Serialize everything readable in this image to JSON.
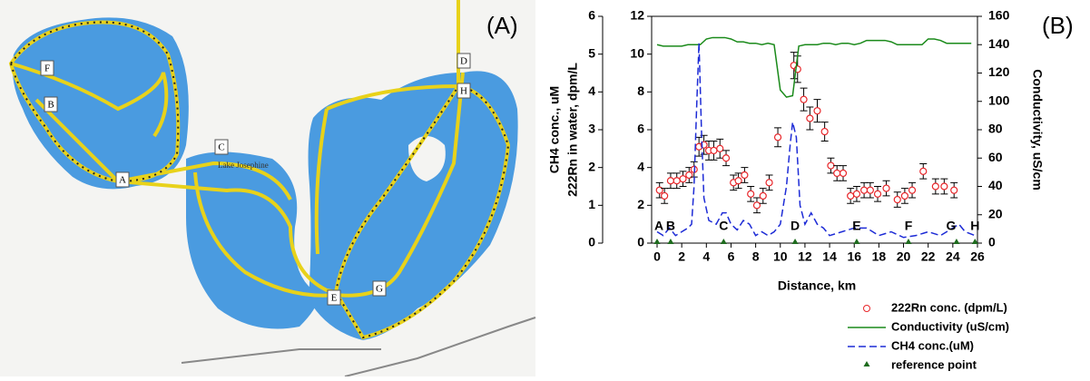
{
  "map": {
    "panel_label": "(A)",
    "lake_name": "Lake Josephine",
    "points": [
      {
        "label": "F"
      },
      {
        "label": "B"
      },
      {
        "label": "C"
      },
      {
        "label": "A"
      },
      {
        "label": "D"
      },
      {
        "label": "H"
      },
      {
        "label": "G"
      },
      {
        "label": "E"
      }
    ]
  },
  "chart_data": {
    "type": "multi-axis",
    "panel_label": "(B)",
    "x_label": "Distance, km",
    "y_label": "222Rn in water, dpm/L",
    "y2_label": "Conductivity, uS/cm",
    "y3_label": "CH4 conc., uM",
    "xlim": [
      0,
      26
    ],
    "xticks": [
      0,
      2,
      4,
      6,
      8,
      10,
      12,
      14,
      16,
      18,
      20,
      22,
      24,
      26
    ],
    "ylim": [
      0,
      12
    ],
    "yticks": [
      0,
      2,
      4,
      6,
      8,
      10,
      12
    ],
    "y2lim": [
      0,
      160
    ],
    "y2ticks": [
      0,
      20,
      40,
      60,
      80,
      100,
      120,
      140,
      160
    ],
    "y3lim": [
      0,
      6
    ],
    "y3ticks": [
      0,
      1,
      2,
      3,
      4,
      5,
      6
    ],
    "series": [
      {
        "name": "222Rn conc. (dpm/L)",
        "type": "scatter",
        "color": "#e8262a",
        "x": [
          0.2,
          0.6,
          1.1,
          1.6,
          2.1,
          2.6,
          3.0,
          3.4,
          3.8,
          4.2,
          4.6,
          5.1,
          5.6,
          6.2,
          6.6,
          7.1,
          7.6,
          8.1,
          8.6,
          9.1,
          9.8,
          11.1,
          11.4,
          11.9,
          12.4,
          13.0,
          13.6,
          14.1,
          14.6,
          15.1,
          15.7,
          16.2,
          16.8,
          17.3,
          17.9,
          18.6,
          19.5,
          20.1,
          20.7,
          21.6,
          22.6,
          23.3,
          24.1
        ],
        "values": [
          2.8,
          2.5,
          3.3,
          3.3,
          3.4,
          3.6,
          3.9,
          5.1,
          5.2,
          4.9,
          4.9,
          5.0,
          4.5,
          3.2,
          3.3,
          3.6,
          2.6,
          2.0,
          2.5,
          3.2,
          5.6,
          9.4,
          9.2,
          7.6,
          6.6,
          7.0,
          5.9,
          4.1,
          3.7,
          3.7,
          2.5,
          2.6,
          2.8,
          2.8,
          2.6,
          2.9,
          2.3,
          2.5,
          2.8,
          3.8,
          3.0,
          3.0,
          2.8
        ],
        "errors": [
          0.4,
          0.4,
          0.4,
          0.4,
          0.4,
          0.4,
          0.4,
          0.5,
          0.5,
          0.5,
          0.5,
          0.5,
          0.4,
          0.4,
          0.4,
          0.4,
          0.4,
          0.4,
          0.4,
          0.4,
          0.5,
          0.7,
          0.7,
          0.6,
          0.6,
          0.6,
          0.5,
          0.4,
          0.4,
          0.4,
          0.4,
          0.4,
          0.4,
          0.4,
          0.4,
          0.4,
          0.4,
          0.4,
          0.4,
          0.4,
          0.4,
          0.4,
          0.4
        ]
      },
      {
        "name": "Conductivity (uS/cm)",
        "type": "line",
        "axis": "y2",
        "color": "#1a8a1a",
        "x": [
          0,
          0.5,
          1,
          1.5,
          2,
          2.5,
          3,
          3.5,
          4,
          4.5,
          5,
          5.5,
          6,
          6.5,
          7,
          7.5,
          8,
          8.5,
          9,
          9.5,
          10,
          10.5,
          11,
          11.5,
          12,
          12.5,
          13,
          13.5,
          14,
          14.5,
          15,
          15.5,
          16,
          16.5,
          17,
          17.5,
          18,
          18.5,
          19,
          19.5,
          20,
          20.5,
          21,
          21.5,
          22,
          22.5,
          23,
          23.5,
          24,
          24.5,
          25,
          25.5
        ],
        "values": [
          140,
          139,
          139,
          139,
          139,
          140,
          140,
          140,
          144,
          145,
          145,
          145,
          144,
          142,
          142,
          141,
          141,
          140,
          141,
          140,
          108,
          103,
          104,
          139,
          140,
          140,
          140,
          141,
          141,
          140,
          141,
          141,
          140,
          141,
          143,
          143,
          143,
          143,
          142,
          140,
          140,
          140,
          140,
          140,
          144,
          144,
          143,
          141,
          141,
          141,
          141,
          141
        ]
      },
      {
        "name": "CH4 conc.(uM)",
        "type": "line",
        "axis": "y3",
        "color": "#1d2bd6",
        "dashed": true,
        "x": [
          0,
          0.5,
          1,
          1.5,
          2,
          2.5,
          2.8,
          3.0,
          3.2,
          3.4,
          3.6,
          3.8,
          4.2,
          4.8,
          5.3,
          5.6,
          6,
          6.5,
          7,
          7.5,
          8,
          8.5,
          9,
          9.5,
          10,
          10.5,
          10.8,
          11,
          11.3,
          11.6,
          12,
          12.5,
          13,
          13.5,
          14,
          15,
          16,
          17,
          18,
          19,
          20,
          21,
          22,
          23,
          24,
          24.5,
          25,
          25.8
        ],
        "values": [
          0.3,
          0.2,
          0.4,
          0.2,
          0.3,
          0.4,
          0.5,
          1.5,
          3.5,
          5.3,
          3.0,
          1.2,
          0.6,
          0.5,
          0.8,
          0.8,
          0.5,
          0.35,
          0.6,
          0.5,
          0.2,
          0.3,
          0.2,
          0.3,
          0.5,
          1.5,
          2.6,
          3.2,
          2.8,
          1.0,
          0.5,
          0.8,
          0.5,
          0.4,
          0.2,
          0.3,
          0.4,
          0.4,
          0.2,
          0.3,
          0.15,
          0.2,
          0.3,
          0.2,
          0.4,
          0.5,
          0.3,
          0.2
        ]
      },
      {
        "name": "reference point",
        "type": "scatter",
        "color": "#1e6b1e",
        "x": [
          0,
          1.1,
          5.4,
          11.2,
          16.2,
          20.4,
          24.3,
          25.8
        ],
        "values": [
          0,
          0,
          0,
          0,
          0,
          0,
          0,
          0
        ],
        "labels": [
          "A",
          "B",
          "C",
          "D",
          "E",
          "F",
          "G",
          "H"
        ]
      }
    ]
  }
}
